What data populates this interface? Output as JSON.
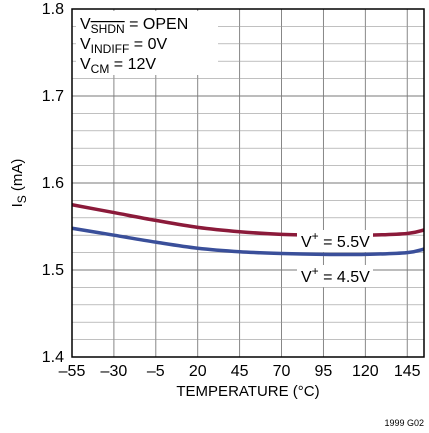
{
  "chart_data": {
    "type": "line",
    "xlabel": "TEMPERATURE (°C)",
    "ylabel_main": "I",
    "ylabel_sub": "S",
    "ylabel_unit": " (mA)",
    "xlim": [
      -55,
      155
    ],
    "ylim": [
      1.4,
      1.8
    ],
    "grid": true,
    "x_ticks": [
      -55,
      -30,
      -5,
      20,
      45,
      70,
      95,
      120,
      145
    ],
    "x_tick_labels": [
      "–55",
      "–30",
      "–5",
      "20",
      "45",
      "70",
      "95",
      "120",
      "145"
    ],
    "y_ticks": [
      1.4,
      1.5,
      1.6,
      1.7,
      1.8
    ],
    "y_tick_labels": [
      "1.4",
      "1.5",
      "1.6",
      "1.7",
      "1.8"
    ],
    "conditions": [
      {
        "main": "V",
        "sub": "SHDN",
        "sub_overline": true,
        "rest": " = OPEN"
      },
      {
        "main": "V",
        "sub": "INDIFF",
        "sub_overline": false,
        "rest": " = 0V"
      },
      {
        "main": "V",
        "sub": "CM",
        "sub_overline": false,
        "rest": " = 12V"
      }
    ],
    "series": [
      {
        "label_main": "V",
        "label_sup": "+",
        "label_rest": " = 5.5V",
        "color": "#8b1a3a",
        "x": [
          -55,
          -30,
          -5,
          20,
          45,
          70,
          95,
          120,
          145,
          155
        ],
        "y": [
          1.575,
          1.566,
          1.557,
          1.549,
          1.544,
          1.541,
          1.54,
          1.54,
          1.542,
          1.546
        ]
      },
      {
        "label_main": "V",
        "label_sup": "+",
        "label_rest": " = 4.5V",
        "color": "#3a4f9a",
        "x": [
          -55,
          -30,
          -5,
          20,
          45,
          70,
          95,
          120,
          145,
          155
        ],
        "y": [
          1.548,
          1.54,
          1.532,
          1.525,
          1.521,
          1.519,
          1.518,
          1.518,
          1.52,
          1.524
        ]
      }
    ],
    "figure_id": "1999 G02"
  }
}
